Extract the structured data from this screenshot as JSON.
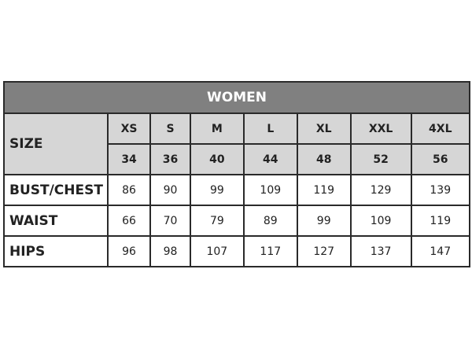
{
  "title": "WOMEN",
  "size_label": "SIZE",
  "sizes": [
    "XS",
    "S",
    "M",
    "L",
    "XL",
    "XXL",
    "4XL"
  ],
  "eu_sizes": [
    "34",
    "36",
    "40",
    "44",
    "48",
    "52",
    "56"
  ],
  "rows": [
    {
      "label": "BUST/CHEST",
      "values": [
        "86",
        "90",
        "99",
        "109",
        "119",
        "129",
        "139"
      ]
    },
    {
      "label": "WAIST",
      "values": [
        "66",
        "70",
        "79",
        "89",
        "99",
        "109",
        "119"
      ]
    },
    {
      "label": "HIPS",
      "values": [
        "96",
        "98",
        "107",
        "117",
        "127",
        "137",
        "147"
      ]
    }
  ],
  "colors": {
    "header": "#808080",
    "size_rows": "#d6d6d6",
    "border": "#2a2a2a"
  }
}
